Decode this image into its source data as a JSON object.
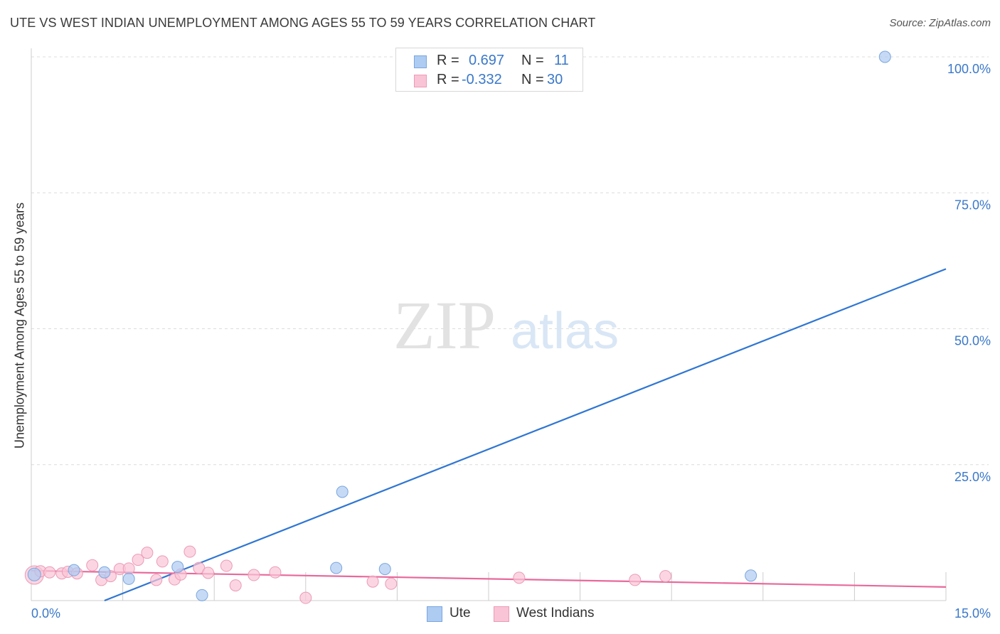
{
  "header": {
    "title": "UTE VS WEST INDIAN UNEMPLOYMENT AMONG AGES 55 TO 59 YEARS CORRELATION CHART",
    "source": "Source: ZipAtlas.com"
  },
  "watermark": {
    "zip": "ZIP",
    "atlas": "atlas"
  },
  "legend": {
    "rows": [
      {
        "r_label": "R =",
        "r_value": "0.697",
        "n_label": "N =",
        "n_value": "11",
        "color": "#aecbf2",
        "border": "#7aa6df"
      },
      {
        "r_label": "R =",
        "r_value": "-0.332",
        "n_label": "N =",
        "n_value": "30",
        "color": "#f9c4d5",
        "border": "#ec9ab6"
      }
    ]
  },
  "bottom_legend": [
    {
      "label": "Ute",
      "color": "#aecbf2",
      "border": "#7aa6df"
    },
    {
      "label": "West Indians",
      "color": "#f9c4d5",
      "border": "#ec9ab6"
    }
  ],
  "chart_data": {
    "type": "scatter",
    "title": "UTE VS WEST INDIAN UNEMPLOYMENT AMONG AGES 55 TO 59 YEARS CORRELATION CHART",
    "xlabel": "",
    "ylabel": "Unemployment Among Ages 55 to 59 years",
    "xlim": [
      0,
      15
    ],
    "ylim": [
      0,
      100
    ],
    "x_tick_labels": [
      "0.0%",
      "15.0%"
    ],
    "y_ticks": [
      25,
      50,
      75,
      100
    ],
    "y_tick_labels": [
      "25.0%",
      "50.0%",
      "75.0%",
      "100.0%"
    ],
    "grid": true,
    "series": [
      {
        "name": "Ute",
        "color": "#aecbf2",
        "stroke": "#7aa6df",
        "line_color": "#2f76d2",
        "points": [
          [
            0.05,
            4.8
          ],
          [
            0.7,
            5.6
          ],
          [
            1.2,
            5.2
          ],
          [
            1.6,
            4.0
          ],
          [
            2.4,
            6.2
          ],
          [
            2.8,
            1.0
          ],
          [
            5.1,
            20.0
          ],
          [
            5.0,
            6.0
          ],
          [
            5.8,
            5.8
          ],
          [
            11.8,
            4.6
          ],
          [
            14.0,
            100.0
          ]
        ],
        "trend": {
          "x0": 1.2,
          "y0": 0.0,
          "x1": 15.0,
          "y1": 61.0
        }
      },
      {
        "name": "West Indians",
        "color": "#f9c4d5",
        "stroke": "#ec9ab6",
        "line_color": "#e8699a",
        "points": [
          [
            0.05,
            4.7
          ],
          [
            0.15,
            5.4
          ],
          [
            0.3,
            5.2
          ],
          [
            0.5,
            5.0
          ],
          [
            0.6,
            5.3
          ],
          [
            0.75,
            5.0
          ],
          [
            1.0,
            6.5
          ],
          [
            1.15,
            3.8
          ],
          [
            1.3,
            4.5
          ],
          [
            1.45,
            5.8
          ],
          [
            1.6,
            5.9
          ],
          [
            1.75,
            7.5
          ],
          [
            1.9,
            8.8
          ],
          [
            2.05,
            3.8
          ],
          [
            2.15,
            7.2
          ],
          [
            2.35,
            3.9
          ],
          [
            2.45,
            4.8
          ],
          [
            2.6,
            9.0
          ],
          [
            2.75,
            6.0
          ],
          [
            2.9,
            5.1
          ],
          [
            3.2,
            6.4
          ],
          [
            3.35,
            2.8
          ],
          [
            3.65,
            4.7
          ],
          [
            4.0,
            5.2
          ],
          [
            4.5,
            0.5
          ],
          [
            5.6,
            3.5
          ],
          [
            5.9,
            3.1
          ],
          [
            8.0,
            4.2
          ],
          [
            9.9,
            3.8
          ],
          [
            10.4,
            4.5
          ]
        ],
        "trend": {
          "x0": 0.0,
          "y0": 5.5,
          "x1": 15.0,
          "y1": 2.5
        }
      }
    ]
  }
}
